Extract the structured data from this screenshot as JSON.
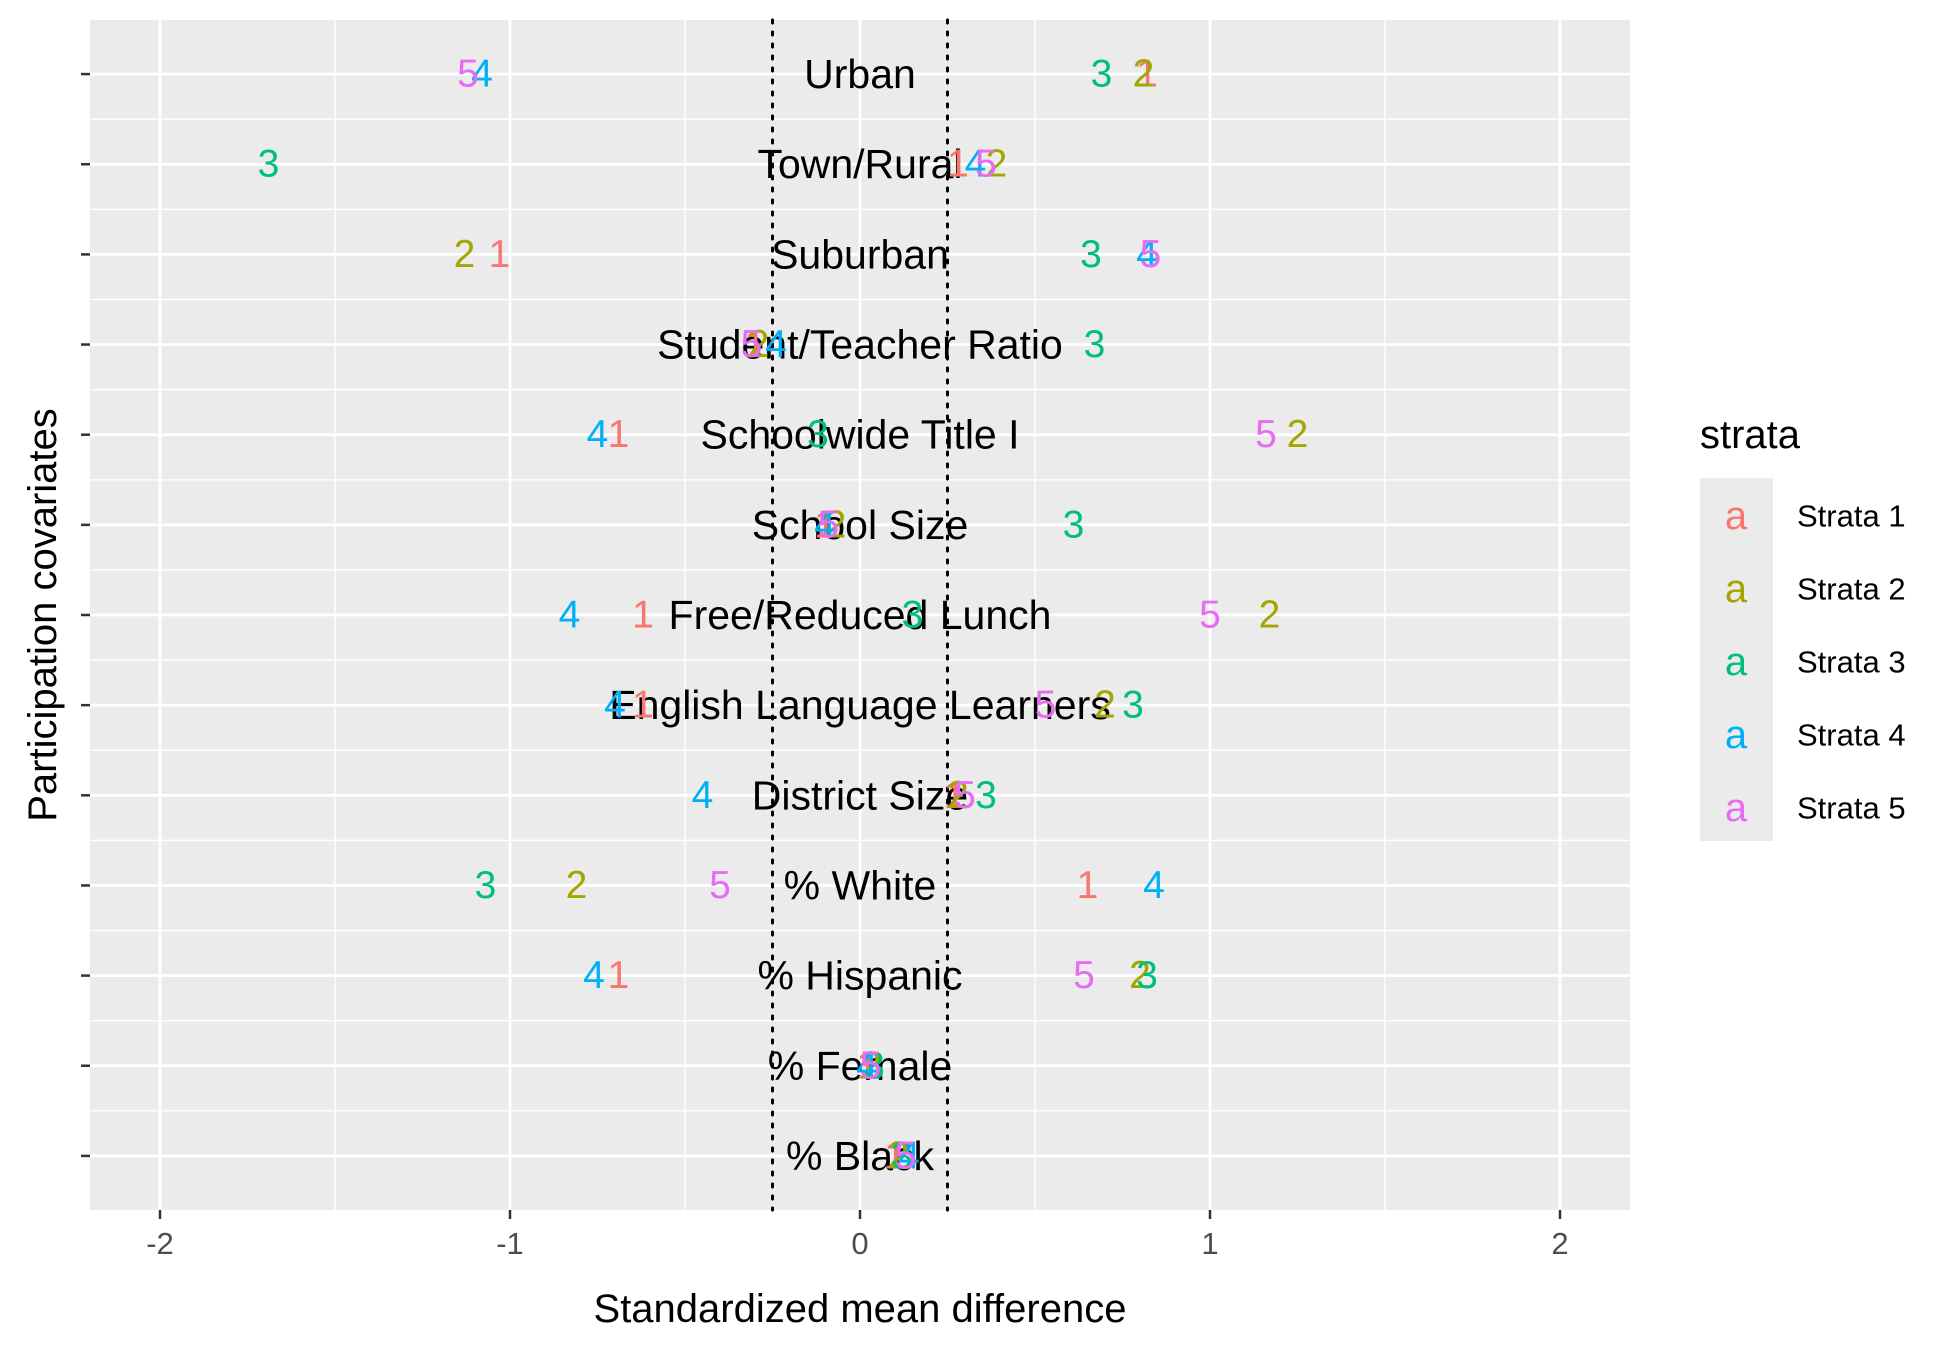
{
  "chart_data": {
    "type": "scatter",
    "xlabel": "Standardized mean difference",
    "ylabel": "Participation covariates",
    "xlim": [
      -2.2,
      2.2
    ],
    "x_ticks": [
      -2,
      -1,
      0,
      1,
      2
    ],
    "x_tick_labels": [
      "-2",
      "-1",
      "0",
      "1",
      "2"
    ],
    "reference_lines": [
      -0.25,
      0.25
    ],
    "grid": true,
    "covariates": [
      "Urban",
      "Town/Rural",
      "Suburban",
      "Student/Teacher Ratio",
      "Schoolwide Title I",
      "School Size",
      "Free/Reduced Lunch",
      "English Language Learners",
      "District Size",
      "% White",
      "% Hispanic",
      "% Female",
      "% Black"
    ],
    "legend": {
      "title": "strata",
      "placement": "right",
      "key_glyph": "a"
    },
    "series": [
      {
        "name": "Strata 1",
        "label": "1",
        "color": "#F8766D",
        "values": [
          0.82,
          0.28,
          -1.03,
          -0.3,
          -0.69,
          -0.1,
          -0.62,
          -0.62,
          0.27,
          0.65,
          -0.69,
          0.02,
          0.1
        ]
      },
      {
        "name": "Strata 2",
        "label": "2",
        "color": "#A3A500",
        "values": [
          0.81,
          0.39,
          -1.13,
          -0.29,
          1.25,
          -0.07,
          1.17,
          0.7,
          0.28,
          -0.81,
          0.8,
          0.03,
          0.11
        ]
      },
      {
        "name": "Strata 3",
        "label": "3",
        "color": "#00BF7D",
        "values": [
          0.69,
          -1.69,
          0.66,
          0.67,
          -0.12,
          0.61,
          0.15,
          0.78,
          0.36,
          -1.07,
          0.82,
          0.04,
          0.12
        ]
      },
      {
        "name": "Strata 4",
        "label": "4",
        "color": "#00B0F6",
        "values": [
          -1.08,
          0.33,
          0.82,
          -0.24,
          -0.75,
          -0.1,
          -0.83,
          -0.7,
          -0.45,
          0.84,
          -0.76,
          0.02,
          0.14
        ]
      },
      {
        "name": "Strata 5",
        "label": "5",
        "color": "#E76BF3",
        "values": [
          -1.12,
          0.36,
          0.83,
          -0.31,
          1.16,
          -0.09,
          1.0,
          0.53,
          0.3,
          -0.4,
          0.64,
          0.03,
          0.13
        ]
      }
    ]
  }
}
